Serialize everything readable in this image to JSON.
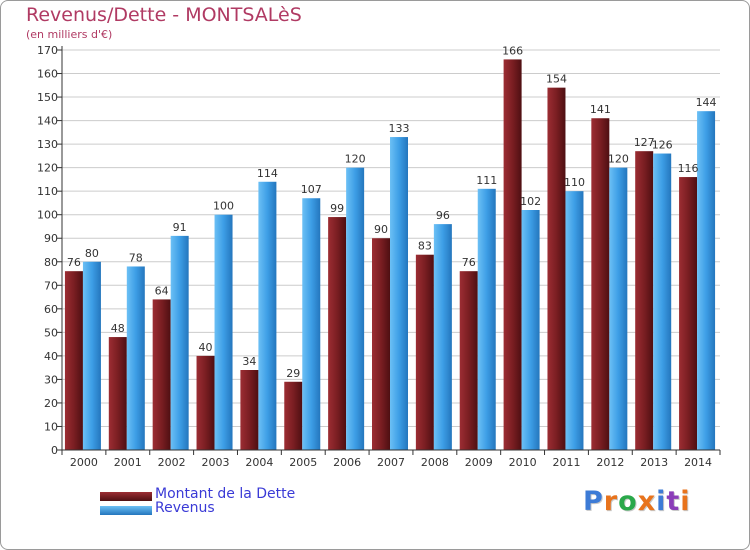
{
  "title": "Revenus/Dette - MONTSALèS",
  "subtitle": "(en milliers d'€)",
  "legend": [
    {
      "label": "Montant de la Dette",
      "color": "#7a1e22"
    },
    {
      "label": "Revenus",
      "color": "#3d9ee6"
    }
  ],
  "logo": {
    "text": "Proxiti",
    "colors": [
      "#3d7bd6",
      "#e8731c",
      "#2aa84a",
      "#e8731c",
      "#3d7bd6",
      "#8a3db8",
      "#e8731c"
    ]
  },
  "colors": {
    "dette": "#7a1e22",
    "revenus": "#3d9ee6",
    "grid": "#cccccc",
    "axis": "#333333",
    "text": "#333333"
  },
  "chart_data": {
    "type": "bar",
    "title": "Revenus/Dette - MONTSALèS",
    "ylabel": "(en milliers d'€)",
    "xlabel": "",
    "ylim": [
      0,
      170
    ],
    "ytick_step": 10,
    "grid": true,
    "legend_position": "bottom-left",
    "categories": [
      "2000",
      "2001",
      "2002",
      "2003",
      "2004",
      "2005",
      "2006",
      "2007",
      "2008",
      "2009",
      "2010",
      "2011",
      "2012",
      "2013",
      "2014"
    ],
    "series": [
      {
        "name": "Montant de la Dette",
        "values": [
          76,
          48,
          64,
          40,
          34,
          29,
          99,
          90,
          83,
          76,
          166,
          154,
          141,
          127,
          116
        ]
      },
      {
        "name": "Revenus",
        "values": [
          80,
          78,
          91,
          100,
          114,
          107,
          120,
          133,
          96,
          111,
          102,
          110,
          120,
          126,
          144
        ]
      }
    ]
  }
}
